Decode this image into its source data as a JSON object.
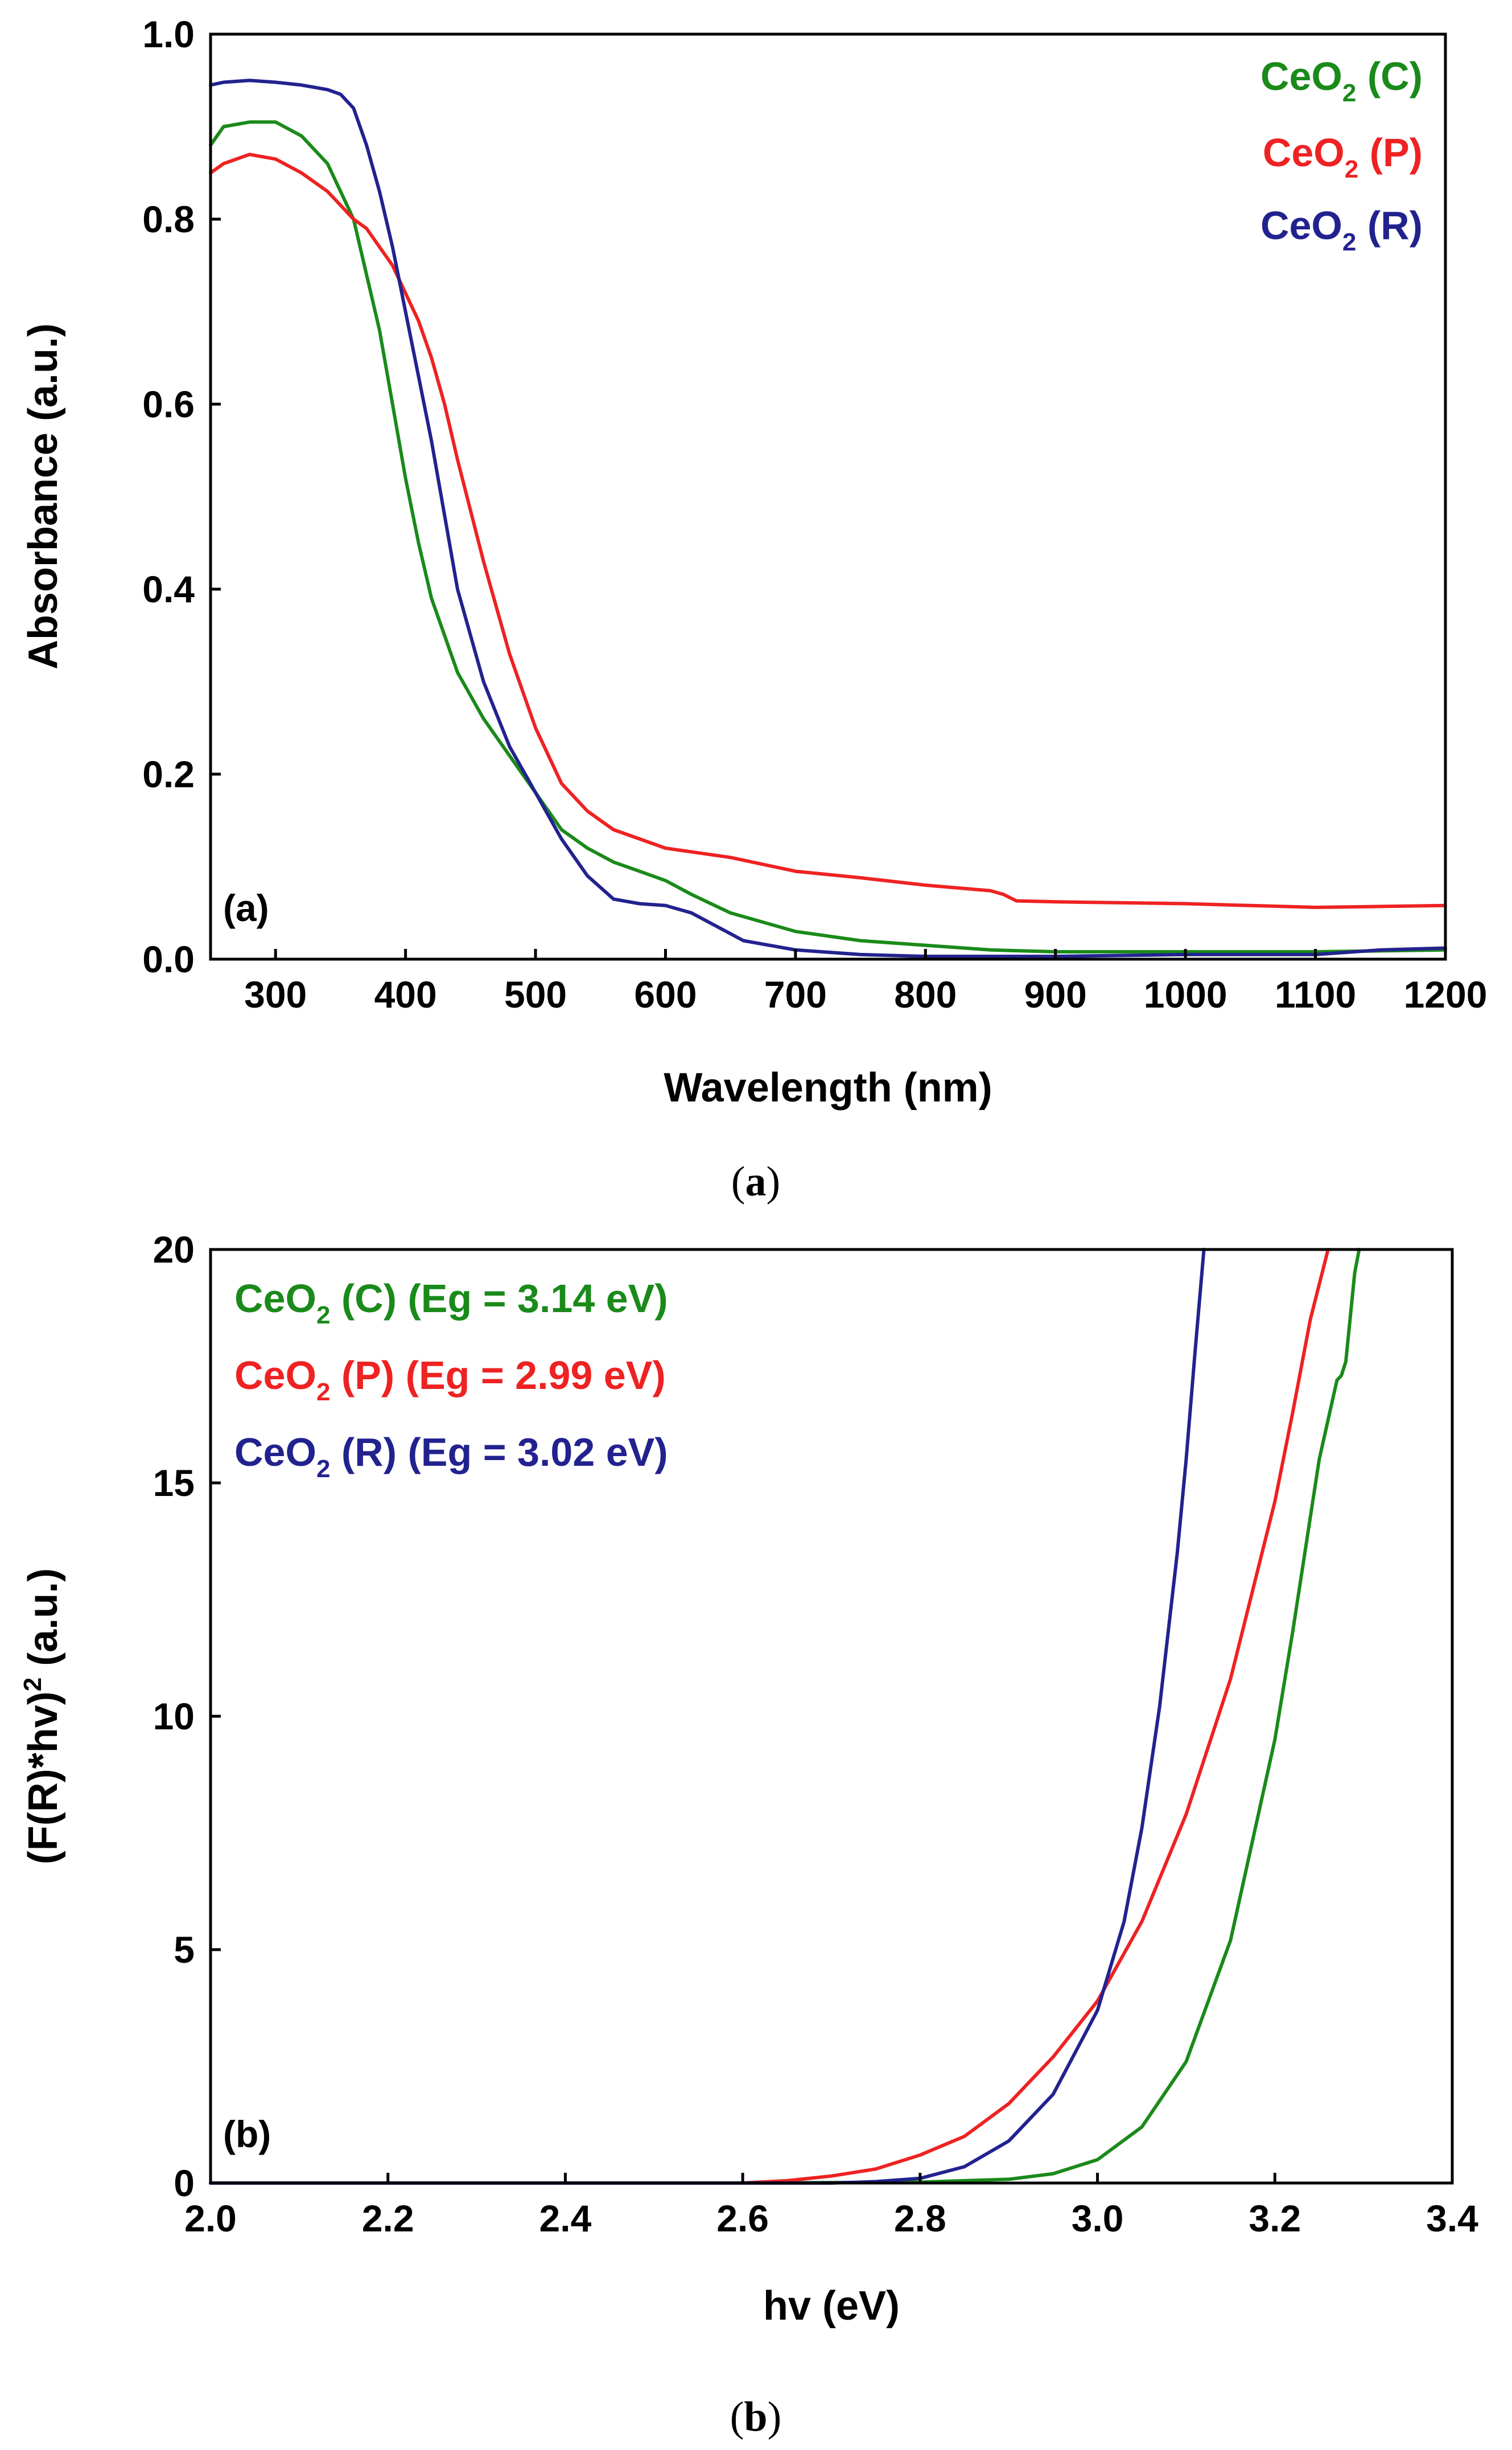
{
  "chart_data": [
    {
      "type": "line",
      "panel_label": "(a)",
      "caption": "a",
      "xlabel": "Wavelength (nm)",
      "ylabel": "Absorbance (a.u.)",
      "xlim": [
        250,
        1200
      ],
      "ylim": [
        0.0,
        1.0
      ],
      "x_ticks": [
        "300",
        "400",
        "500",
        "600",
        "700",
        "800",
        "900",
        "1000",
        "1100",
        "1200"
      ],
      "y_ticks": [
        "0.0",
        "0.2",
        "0.4",
        "0.6",
        "0.8",
        "1.0"
      ],
      "legend_position": "top-right",
      "series": [
        {
          "name": "CeO2 (C)",
          "label_main": "CeO",
          "label_sub": "2",
          "label_tail": " (C)",
          "color": "#1a8a1a",
          "x": [
            250,
            260,
            280,
            300,
            320,
            340,
            360,
            380,
            390,
            400,
            410,
            420,
            430,
            440,
            460,
            480,
            500,
            520,
            540,
            560,
            580,
            600,
            620,
            650,
            700,
            750,
            800,
            850,
            900,
            950,
            1000,
            1100,
            1200
          ],
          "y": [
            0.88,
            0.9,
            0.905,
            0.905,
            0.89,
            0.86,
            0.8,
            0.68,
            0.6,
            0.52,
            0.45,
            0.39,
            0.35,
            0.31,
            0.26,
            0.22,
            0.18,
            0.14,
            0.12,
            0.105,
            0.095,
            0.085,
            0.07,
            0.05,
            0.03,
            0.02,
            0.015,
            0.01,
            0.008,
            0.008,
            0.008,
            0.008,
            0.01
          ]
        },
        {
          "name": "CeO2 (P)",
          "label_main": "CeO",
          "label_sub": "2",
          "label_tail": " (P)",
          "color": "#ee2222",
          "x": [
            250,
            260,
            280,
            300,
            320,
            340,
            360,
            370,
            380,
            390,
            400,
            410,
            420,
            430,
            440,
            460,
            480,
            500,
            520,
            540,
            560,
            600,
            650,
            700,
            750,
            800,
            850,
            860,
            870,
            900,
            1000,
            1050,
            1100,
            1150,
            1200
          ],
          "y": [
            0.85,
            0.86,
            0.87,
            0.865,
            0.85,
            0.83,
            0.8,
            0.79,
            0.77,
            0.75,
            0.72,
            0.69,
            0.65,
            0.6,
            0.54,
            0.43,
            0.33,
            0.25,
            0.19,
            0.16,
            0.14,
            0.12,
            0.11,
            0.095,
            0.088,
            0.08,
            0.074,
            0.07,
            0.063,
            0.062,
            0.06,
            0.058,
            0.056,
            0.057,
            0.058
          ]
        },
        {
          "name": "CeO2 (R)",
          "label_main": "CeO",
          "label_sub": "2",
          "label_tail": " (R)",
          "color": "#22228f",
          "x": [
            250,
            260,
            280,
            300,
            320,
            340,
            350,
            360,
            370,
            380,
            390,
            400,
            410,
            420,
            430,
            440,
            460,
            480,
            500,
            520,
            540,
            560,
            580,
            600,
            620,
            640,
            660,
            700,
            750,
            800,
            900,
            1000,
            1100,
            1150,
            1200
          ],
          "y": [
            0.945,
            0.948,
            0.95,
            0.948,
            0.945,
            0.94,
            0.935,
            0.92,
            0.88,
            0.83,
            0.77,
            0.7,
            0.63,
            0.56,
            0.48,
            0.4,
            0.3,
            0.23,
            0.18,
            0.13,
            0.09,
            0.065,
            0.06,
            0.058,
            0.05,
            0.035,
            0.02,
            0.01,
            0.005,
            0.003,
            0.003,
            0.005,
            0.005,
            0.01,
            0.012
          ]
        }
      ]
    },
    {
      "type": "line",
      "panel_label": "(b)",
      "caption": "b",
      "xlabel": "hv (eV)",
      "ylabel_main": "(F(R)*hv)",
      "ylabel_sup": "2",
      "ylabel_tail": " (a.u.)",
      "xlim": [
        2.0,
        3.4
      ],
      "ylim": [
        0,
        20
      ],
      "x_ticks": [
        "2.0",
        "2.2",
        "2.4",
        "2.6",
        "2.8",
        "3.0",
        "3.2",
        "3.4"
      ],
      "y_ticks": [
        "0",
        "5",
        "10",
        "15",
        "20"
      ],
      "legend_position": "top-left",
      "series": [
        {
          "name": "CeO2 (C) (Eg = 3.14 eV)",
          "label_main": "CeO",
          "label_sub": "2",
          "label_tail": " (C) (Eg = 3.14 eV)",
          "color": "#1a8a1a",
          "x": [
            2.0,
            2.6,
            2.8,
            2.9,
            2.95,
            3.0,
            3.05,
            3.1,
            3.15,
            3.2,
            3.22,
            3.25,
            3.27,
            3.275,
            3.28,
            3.29,
            3.295
          ],
          "y": [
            0,
            0,
            0.02,
            0.08,
            0.2,
            0.5,
            1.2,
            2.6,
            5.2,
            9.5,
            11.8,
            15.5,
            17.2,
            17.3,
            17.6,
            19.5,
            20
          ]
        },
        {
          "name": "CeO2 (P) (Eg = 2.99 eV)",
          "label_main": "CeO",
          "label_sub": "2",
          "label_tail": " (P) (Eg = 2.99 eV)",
          "color": "#ee2222",
          "x": [
            2.0,
            2.6,
            2.65,
            2.7,
            2.75,
            2.8,
            2.85,
            2.9,
            2.95,
            3.0,
            3.05,
            3.1,
            3.15,
            3.2,
            3.22,
            3.24,
            3.26
          ],
          "y": [
            0,
            0,
            0.05,
            0.15,
            0.3,
            0.6,
            1.0,
            1.7,
            2.7,
            3.9,
            5.6,
            7.9,
            10.8,
            14.6,
            16.5,
            18.5,
            20
          ]
        },
        {
          "name": "CeO2 (R) (Eg = 3.02 eV)",
          "label_main": "CeO",
          "label_sub": "2",
          "label_tail": " (R) (Eg = 3.02 eV)",
          "color": "#22228f",
          "x": [
            2.0,
            2.7,
            2.75,
            2.8,
            2.85,
            2.9,
            2.95,
            3.0,
            3.03,
            3.05,
            3.07,
            3.09,
            3.1,
            3.11,
            3.12
          ],
          "y": [
            0,
            0,
            0.03,
            0.1,
            0.35,
            0.9,
            1.9,
            3.7,
            5.6,
            7.6,
            10.2,
            13.5,
            15.5,
            17.8,
            20
          ]
        }
      ]
    }
  ]
}
